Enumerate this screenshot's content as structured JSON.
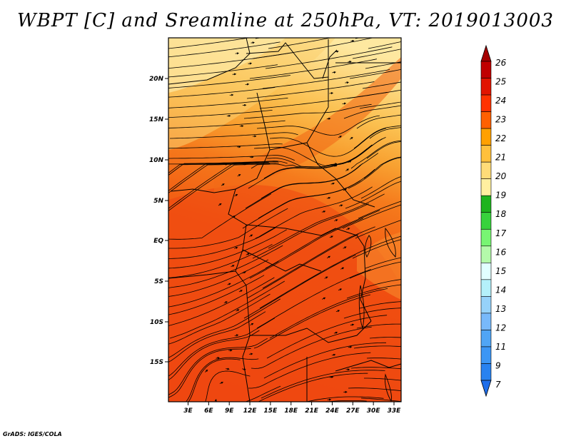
{
  "title": "WBPT [C] and Sreamline at 250hPa, VT: 2019013003",
  "credit": "GrADS: IGES/COLA",
  "map": {
    "lat_ticks": [
      "20N",
      "15N",
      "10N",
      "5N",
      "EQ",
      "5S",
      "10S",
      "15S"
    ],
    "lon_ticks": [
      "3E",
      "6E",
      "9E",
      "12E",
      "15E",
      "18E",
      "21E",
      "24E",
      "27E",
      "30E",
      "33E"
    ]
  },
  "colorbar": {
    "labels": [
      "7",
      "9",
      "11",
      "12",
      "13",
      "14",
      "15",
      "16",
      "17",
      "18",
      "19",
      "20",
      "21",
      "22",
      "23",
      "24",
      "25",
      "26"
    ],
    "colors": [
      "#1e6eeb",
      "#2882f0",
      "#3c96f5",
      "#50a5f5",
      "#78b9fa",
      "#96d2fa",
      "#b4f0fa",
      "#e1ffff",
      "#b4faaa",
      "#78f573",
      "#37d23c",
      "#1eb41e",
      "#fff0a0",
      "#ffdc78",
      "#ffc03c",
      "#ffa000",
      "#ff6000",
      "#ff3200",
      "#e11400",
      "#c00000",
      "#a50000"
    ]
  }
}
